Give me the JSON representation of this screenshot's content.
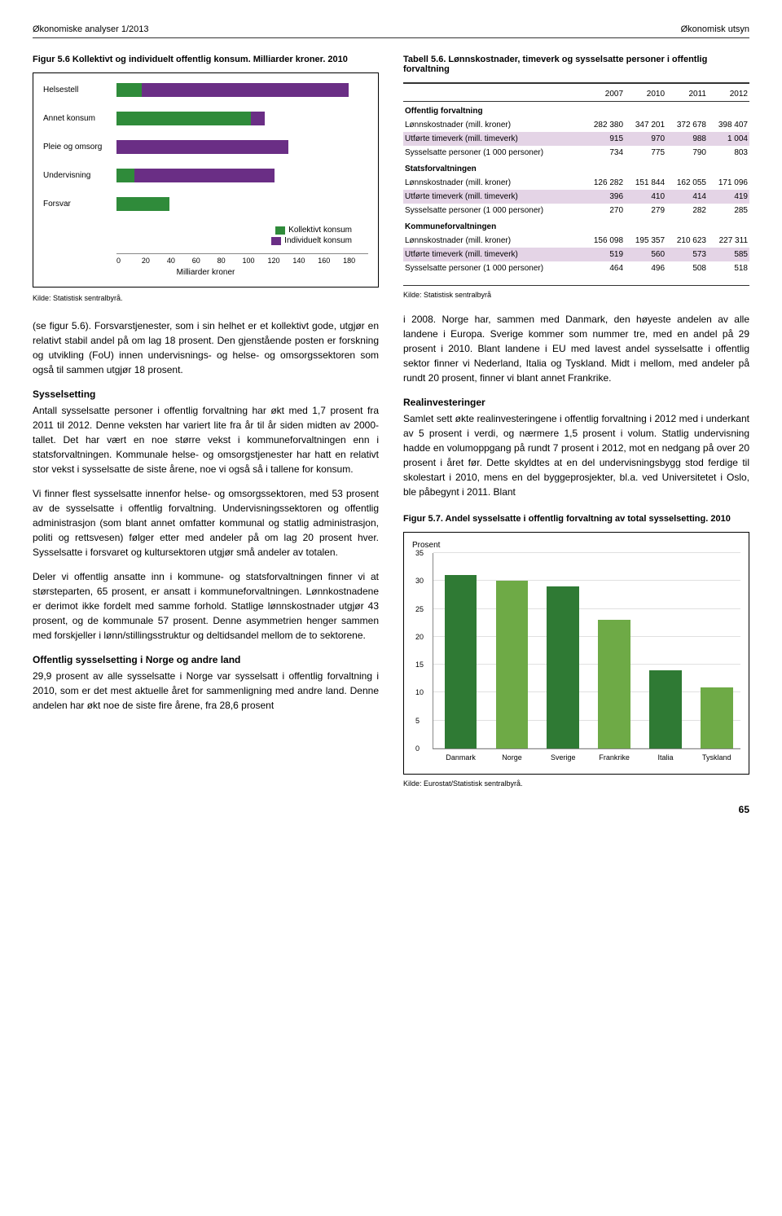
{
  "header": {
    "left": "Økonomiske analyser 1/2013",
    "right": "Økonomisk utsyn"
  },
  "fig56": {
    "title": "Figur 5.6 Kollektivt og individuelt offentlig konsum. Milliarder kroner. 2010",
    "legend": [
      "Kollektivt konsum",
      "Individuelt konsum"
    ],
    "colors": [
      "#2f8b3a",
      "#6a2e85"
    ],
    "rows": [
      {
        "label": "Helsestell",
        "k": 18,
        "i": 148
      },
      {
        "label": "Annet konsum",
        "k": 96,
        "i": 10
      },
      {
        "label": "Pleie og omsorg",
        "k": 0,
        "i": 123
      },
      {
        "label": "Undervisning",
        "k": 13,
        "i": 100
      },
      {
        "label": "Forsvar",
        "k": 38,
        "i": 0
      }
    ],
    "xticks": [
      0,
      20,
      40,
      60,
      80,
      100,
      120,
      140,
      160,
      180
    ],
    "xmax": 180,
    "xlabel": "Milliarder kroner",
    "source": "Kilde: Statistisk sentralbyrå."
  },
  "body_left": [
    "(se figur 5.6). Forsvarstjenester, som i sin helhet er et kollektivt gode, utgjør en relativt stabil andel på om lag 18 prosent. Den gjenstående posten er forskning og utvikling (FoU) innen undervisnings- og helse- og omsorgssektoren som også til sammen utgjør 18 prosent."
  ],
  "sect_syssel": {
    "head": "Sysselsetting",
    "paras": [
      "Antall sysselsatte personer i offentlig forvaltning har økt med 1,7 prosent fra 2011 til 2012. Denne veksten har variert lite fra år til år siden midten av 2000-tallet. Det har vært en noe større vekst i kommuneforvaltningen enn i statsforvaltningen. Kommunale helse- og omsorgstjenester har hatt en relativt stor vekst i sysselsatte de siste årene, noe vi også så i tallene for konsum.",
      "Vi finner flest sysselsatte innenfor helse- og omsorgssektoren, med 53 prosent av de sysselsatte i offentlig forvaltning. Undervisningssektoren og offentlig administrasjon (som blant annet omfatter kommunal og statlig administrasjon, politi og rettsvesen) følger etter med andeler på om lag 20 prosent hver. Sysselsatte i forsvaret og kultursektoren utgjør små andeler av totalen.",
      "Deler vi offentlig ansatte inn i kommune- og statsforvaltningen finner vi at størsteparten, 65 prosent, er ansatt i kommuneforvaltningen. Lønnkostnadene er derimot ikke fordelt med samme forhold. Statlige lønnskostnader utgjør 43 prosent, og de kommunale 57 prosent. Denne asymmetrien henger sammen med forskjeller i lønn/stillingsstruktur og deltidsandel mellom de to sektorene."
    ]
  },
  "sect_norge": {
    "head": "Offentlig sysselsetting i Norge og andre land",
    "para": "29,9 prosent av alle sysselsatte i Norge var sysselsatt i offentlig forvaltning i 2010, som er det mest aktuelle året for sammenligning med andre land. Denne andelen har økt noe de siste fire årene, fra 28,6 prosent"
  },
  "tab56": {
    "title": "Tabell 5.6. Lønnskostnader, timeverk og sysselsatte personer i offentlig forvaltning",
    "years": [
      "2007",
      "2010",
      "2011",
      "2012"
    ],
    "groups": [
      {
        "name": "Offentlig forvaltning",
        "rows": [
          {
            "label": "Lønnskostnader (mill. kroner)",
            "v": [
              "282 380",
              "347 201",
              "372 678",
              "398 407"
            ]
          },
          {
            "label": "Utførte timeverk (mill. timeverk)",
            "v": [
              "915",
              "970",
              "988",
              "1 004"
            ],
            "shade": true
          },
          {
            "label": "Sysselsatte personer (1 000 personer)",
            "v": [
              "734",
              "775",
              "790",
              "803"
            ]
          }
        ]
      },
      {
        "name": "Statsforvaltningen",
        "rows": [
          {
            "label": "Lønnskostnader (mill. kroner)",
            "v": [
              "126 282",
              "151 844",
              "162 055",
              "171 096"
            ]
          },
          {
            "label": "Utførte timeverk (mill. timeverk)",
            "v": [
              "396",
              "410",
              "414",
              "419"
            ],
            "shade": true
          },
          {
            "label": "Sysselsatte personer (1 000 personer)",
            "v": [
              "270",
              "279",
              "282",
              "285"
            ]
          }
        ]
      },
      {
        "name": "Kommuneforvaltningen",
        "rows": [
          {
            "label": "Lønnskostnader (mill. kroner)",
            "v": [
              "156 098",
              "195 357",
              "210 623",
              "227 311"
            ]
          },
          {
            "label": "Utførte timeverk (mill. timeverk)",
            "v": [
              "519",
              "560",
              "573",
              "585"
            ],
            "shade": true
          },
          {
            "label": "Sysselsatte personer (1 000 personer)",
            "v": [
              "464",
              "496",
              "508",
              "518"
            ]
          }
        ]
      }
    ],
    "source": "Kilde: Statistisk sentralbyrå"
  },
  "body_right": [
    "i 2008. Norge har, sammen med Danmark, den høyeste andelen av alle landene i Europa. Sverige kommer som nummer tre, med en andel på 29 prosent i 2010. Blant landene i EU med lavest andel sysselsatte i offentlig sektor finner vi Nederland, Italia og Tyskland. Midt i mellom, med andeler på rundt 20 prosent, finner vi blant annet Frankrike."
  ],
  "sect_real": {
    "head": "Realinvesteringer",
    "para": "Samlet sett økte realinvesteringene i offentlig forvaltning i 2012 med i underkant av 5 prosent i verdi, og nærmere 1,5 prosent i volum. Statlig undervisning hadde en volumoppgang på rundt 7 prosent i 2012, mot en nedgang på over 20 prosent i året før. Dette skyldtes at en del undervisningsbygg stod ferdige til skolestart i 2010, mens en del byggeprosjekter, bl.a. ved Universitetet i Oslo, ble påbegynt i 2011. Blant"
  },
  "fig57": {
    "title": "Figur 5.7. Andel sysselsatte i offentlig forvaltning av total sysselsetting. 2010",
    "ylabel": "Prosent",
    "ymax": 35,
    "ymin": 0,
    "ystep": 5,
    "bars": [
      {
        "label": "Danmark",
        "v": 31,
        "color": "#2f7a34"
      },
      {
        "label": "Norge",
        "v": 30,
        "color": "#6eaa46"
      },
      {
        "label": "Sverige",
        "v": 29,
        "color": "#2f7a34"
      },
      {
        "label": "Frankrike",
        "v": 23,
        "color": "#6eaa46"
      },
      {
        "label": "Italia",
        "v": 14,
        "color": "#2f7a34"
      },
      {
        "label": "Tyskland",
        "v": 11,
        "color": "#6eaa46"
      }
    ],
    "source": "Kilde: Eurostat/Statistisk sentralbyrå."
  },
  "pagenum": "65"
}
